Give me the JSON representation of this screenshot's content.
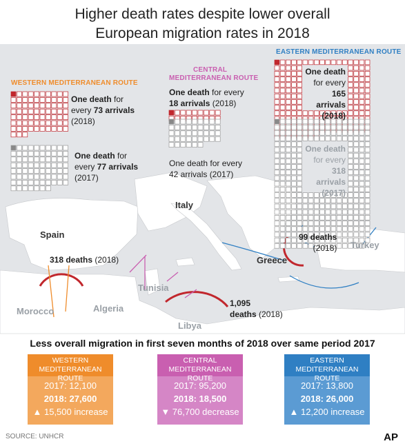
{
  "title_line1": "Higher death rates despite lower overall",
  "title_line2": "European migration rates in 2018",
  "colors": {
    "western": "#ef8c2b",
    "central": "#c95fb0",
    "eastern": "#2f7fc3",
    "death": "#c1272d",
    "grid": "#999999"
  },
  "routes": {
    "western": {
      "label": "WESTERN MEDITERRANEAN ROUTE",
      "y2018_pre": "One death",
      "y2018_pre2": " for",
      "y2018_mid": "every ",
      "y2018_num": "73 arrivals",
      "y2018_year": "(2018)",
      "y2017_pre": "One death",
      "y2017_pre2": " for",
      "y2017_mid": "every ",
      "y2017_num": "77 arrivals",
      "y2017_year": "(2017)"
    },
    "central": {
      "label1": "CENTRAL",
      "label2": "MEDITERRANEAN ROUTE",
      "y2018_line1": "One death",
      "y2018_line1b": " for every",
      "y2018_num": "18 arrivals",
      "y2018_year": " (2018)",
      "y2017_line1": "One death for every",
      "y2017_line2": "42 arrivals (2017)"
    },
    "eastern": {
      "label": "EASTERN MEDITERRANEAN ROUTE",
      "y2018_l1": "One death",
      "y2018_l2": "for every",
      "y2018_l3": "165 arrivals",
      "y2018_l4": "(2018)",
      "y2017_l1": "One death",
      "y2017_l2": "for every",
      "y2017_l3": "318 arrivals",
      "y2017_l4": "(2017)"
    }
  },
  "deaths": {
    "western": {
      "num": "318 deaths",
      "year": " (2018)"
    },
    "central": {
      "num": "1,095",
      "num2": "deaths",
      "year": " (2018)"
    },
    "eastern": {
      "num": "99 deaths",
      "year": "(2018)"
    }
  },
  "places": {
    "spain": "Spain",
    "italy": "Italy",
    "greece": "Greece",
    "turkey": "Turkey",
    "morocco": "Morocco",
    "algeria": "Algeria",
    "tunisia": "Tunisia",
    "libya": "Libya"
  },
  "summary": {
    "title": "Less overall migration in first seven months of 2018 over same period 2017",
    "western": {
      "head1": "WESTERN",
      "head2": "MEDITERRANEAN ROUTE",
      "l2017": "2017: 12,100",
      "l2018": "2018: 27,600",
      "change": "▲ 15,500 increase"
    },
    "central": {
      "head1": "CENTRAL",
      "head2": "MEDITERRANEAN ROUTE",
      "l2017": "2017: 95,200",
      "l2018": "2018: 18,500",
      "change": "▼ 76,700 decrease"
    },
    "eastern": {
      "head1": "EASTERN",
      "head2": "MEDITERRANEAN ROUTE",
      "l2017": "2017: 13,800",
      "l2018": "2018: 26,000",
      "change": "▲ 12,200 increase"
    }
  },
  "source": "SOURCE: UNHCR",
  "credit": "AP",
  "chart_data": {
    "type": "table",
    "title": "Higher death rates despite lower overall European migration rates in 2018",
    "routes": [
      "Western Mediterranean Route",
      "Central Mediterranean Route",
      "Eastern Mediterranean Route"
    ],
    "arrivals_per_death_2018": [
      73,
      18,
      165
    ],
    "arrivals_per_death_2017": [
      77,
      42,
      318
    ],
    "deaths_2018": [
      318,
      1095,
      99
    ],
    "arrivals_2017": [
      12100,
      95200,
      13800
    ],
    "arrivals_2018": [
      27600,
      18500,
      26000
    ],
    "change": [
      15500,
      -76700,
      12200
    ]
  }
}
